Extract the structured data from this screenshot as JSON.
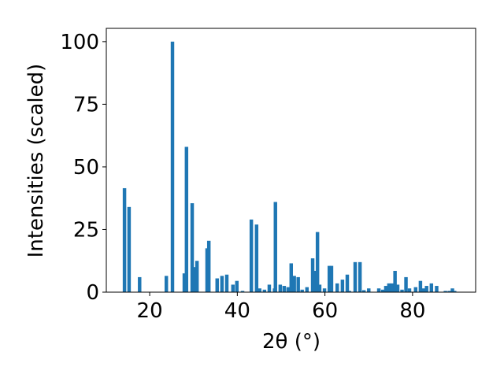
{
  "chart_data": {
    "type": "bar",
    "xlabel": "2θ (°)",
    "ylabel": "Intensities (scaled)",
    "color": "#1f77b4",
    "xlim": [
      10.1,
      94.4
    ],
    "ylim": [
      0,
      105.3
    ],
    "xticks": [
      20,
      40,
      60,
      80
    ],
    "yticks": [
      0,
      25,
      50,
      75,
      100
    ],
    "x": [
      14.25,
      15.3,
      17.7,
      23.8,
      25.2,
      27.9,
      28.4,
      29.7,
      30.2,
      30.8,
      33.1,
      33.5,
      35.4,
      36.5,
      37.6,
      39.0,
      39.9,
      41.2,
      43.2,
      44.4,
      45.1,
      46.2,
      47.3,
      48.5,
      48.7,
      49.8,
      50.7,
      51.6,
      52.3,
      53.0,
      53.9,
      54.8,
      55.9,
      57.2,
      57.7,
      58.3,
      58.8,
      59.9,
      61.0,
      61.5,
      62.8,
      64.0,
      65.1,
      65.6,
      66.9,
      68.0,
      68.9,
      70.0,
      72.3,
      73.2,
      73.9,
      74.6,
      75.3,
      76.0,
      76.6,
      77.6,
      78.5,
      79.3,
      80.7,
      81.8,
      82.5,
      83.2,
      84.3,
      85.5,
      87.5,
      88.4,
      89.1,
      89.6
    ],
    "values": [
      41.5,
      34,
      6,
      6.5,
      100,
      7.5,
      58,
      35.5,
      10,
      12.5,
      17.5,
      20.5,
      5.5,
      6.5,
      7,
      3,
      4.5,
      0.5,
      29,
      27,
      1.5,
      1,
      3,
      1.5,
      36,
      3,
      2.5,
      2,
      11.5,
      6.5,
      6,
      1,
      2,
      13.5,
      8.5,
      24,
      3,
      1.5,
      10.5,
      10.5,
      3.5,
      5,
      7,
      0.5,
      12,
      12,
      0.8,
      1.5,
      1.5,
      1,
      2.5,
      3.5,
      3.5,
      8.5,
      3,
      1,
      6,
      1.5,
      2,
      4.5,
      1.5,
      2.5,
      3.5,
      2.5,
      0.5,
      0.5,
      1.5,
      0.5
    ]
  }
}
